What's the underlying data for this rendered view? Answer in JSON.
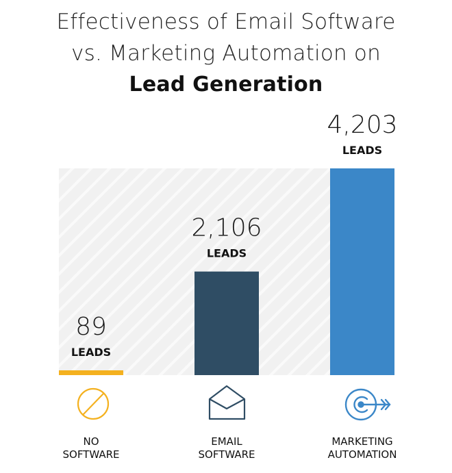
{
  "chart_data": {
    "type": "bar",
    "title_lines": [
      "Effectiveness of Email Software",
      "vs. Marketing Automation on",
      "Lead Generation"
    ],
    "categories": [
      {
        "lines": [
          "NO",
          "SOFTWARE"
        ],
        "icon": "no-symbol-icon"
      },
      {
        "lines": [
          "EMAIL",
          "SOFTWARE"
        ],
        "icon": "envelope-icon"
      },
      {
        "lines": [
          "MARKETING",
          "AUTOMATION"
        ],
        "icon": "target-arrow-icon"
      }
    ],
    "values": [
      89,
      2106,
      4203
    ],
    "value_labels": [
      "89",
      "2,106",
      "4,203"
    ],
    "unit_label": "LEADS",
    "colors": [
      "#f4b11f",
      "#2f4d64",
      "#3b87c8"
    ],
    "ylim": [
      0,
      4203
    ],
    "xlabel": "",
    "ylabel": "",
    "grid": false,
    "legend": "none"
  }
}
